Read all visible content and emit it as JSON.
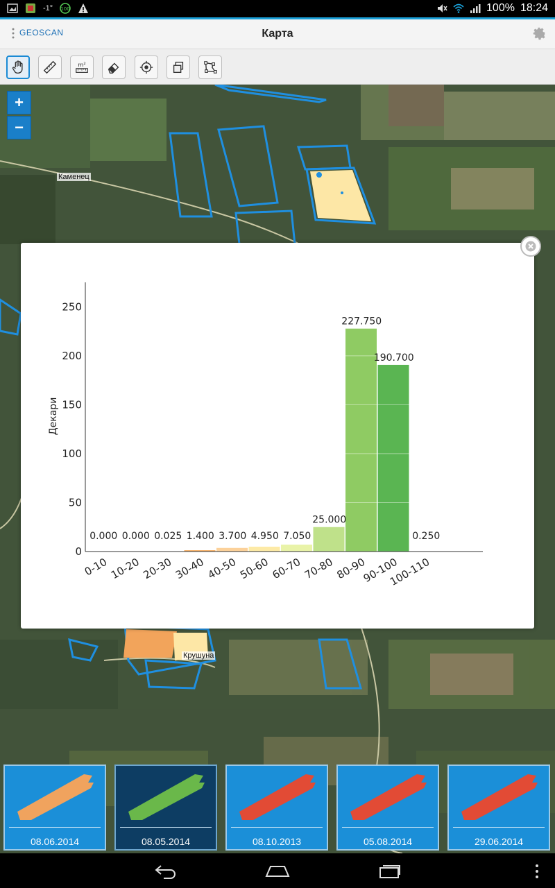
{
  "status_bar": {
    "temperature": "-1°",
    "battery": "100%",
    "time": "18:24"
  },
  "app_bar": {
    "logo": "GEOSCAN",
    "title": "Карта"
  },
  "map": {
    "place_labels": [
      "Каменец",
      "Крушуна"
    ]
  },
  "zoom": {
    "in": "+",
    "out": "−"
  },
  "chart_data": {
    "type": "bar",
    "title": "",
    "xlabel": "",
    "ylabel": "Декари",
    "categories": [
      "0-10",
      "10-20",
      "20-30",
      "30-40",
      "40-50",
      "50-60",
      "60-70",
      "70-80",
      "80-90",
      "90-100",
      "100-110"
    ],
    "values": [
      0.0,
      0.0,
      0.025,
      1.4,
      3.7,
      4.95,
      7.05,
      25.0,
      227.75,
      190.7,
      0.25
    ],
    "value_labels": [
      "0.000",
      "0.000",
      "0.025",
      "1.400",
      "3.700",
      "4.950",
      "7.050",
      "25.000",
      "227.750",
      "190.700",
      "0.250"
    ],
    "colors": [
      "#d7191c",
      "#e8552f",
      "#f08a4b",
      "#f6b26b",
      "#fcd19a",
      "#fdeaa6",
      "#e9f3a8",
      "#bfe18a",
      "#8fcb63",
      "#5ab552",
      "#2e9a45"
    ],
    "yticks": [
      0,
      50,
      100,
      150,
      200,
      250
    ],
    "ylim": [
      0,
      275
    ],
    "grid": false
  },
  "dates": [
    "08.06.2014",
    "08.05.2014",
    "08.10.2013",
    "05.08.2014",
    "29.06.2014"
  ],
  "thumb_colors": [
    "#f0a35e",
    "#6ab84a",
    "#e24b35",
    "#e24b35",
    "#e24b35"
  ],
  "selected_index": 1
}
